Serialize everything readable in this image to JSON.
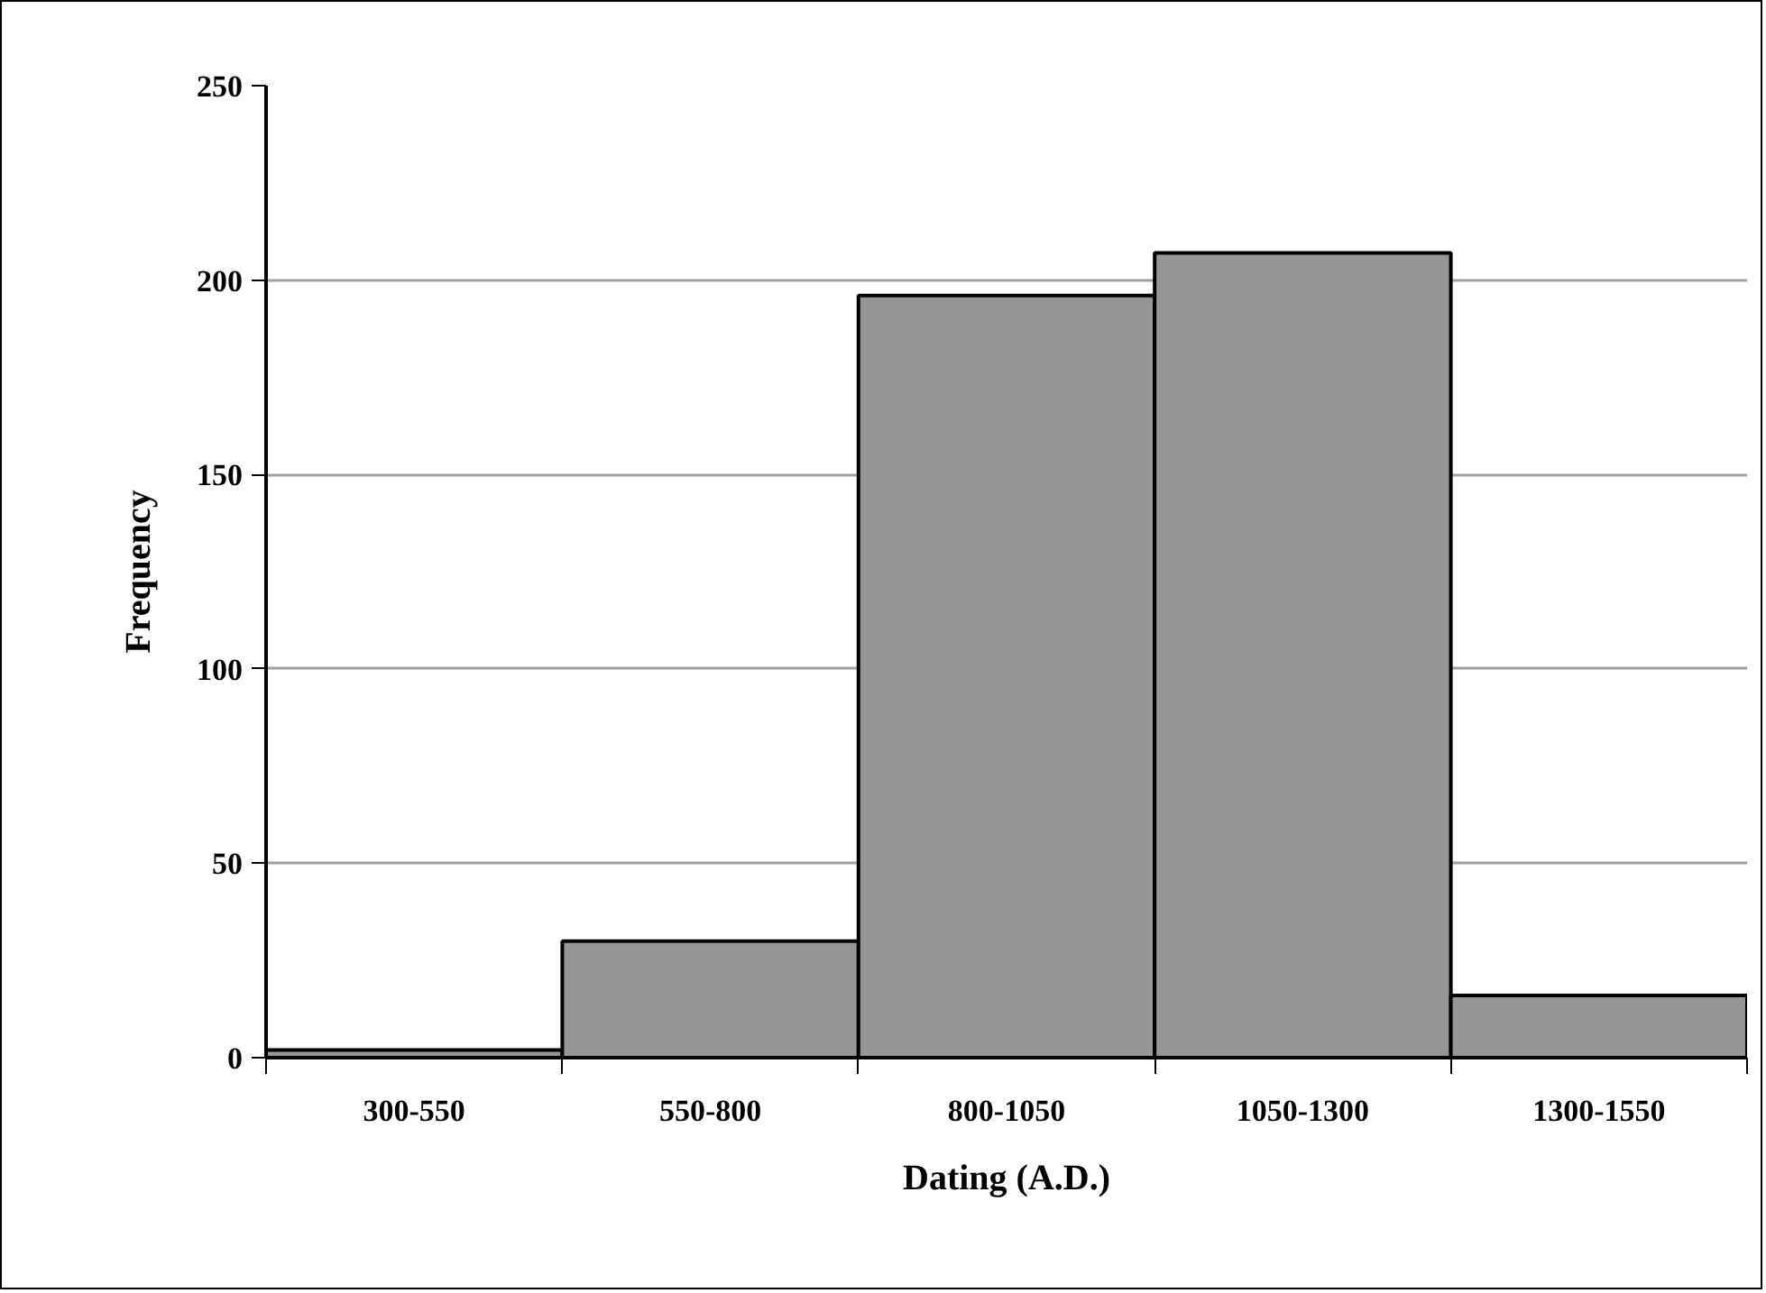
{
  "chart_data": {
    "type": "bar",
    "xlabel": "Dating (A.D.)",
    "ylabel": "Frequency",
    "categories": [
      "300-550",
      "550-800",
      "800-1050",
      "1050-1300",
      "1300-1550"
    ],
    "values": [
      2,
      30,
      196,
      207,
      16
    ],
    "color": "#969696",
    "ylim": [
      0,
      250
    ],
    "yticks": [
      0,
      50,
      100,
      150,
      200,
      250
    ],
    "grid": "y"
  }
}
